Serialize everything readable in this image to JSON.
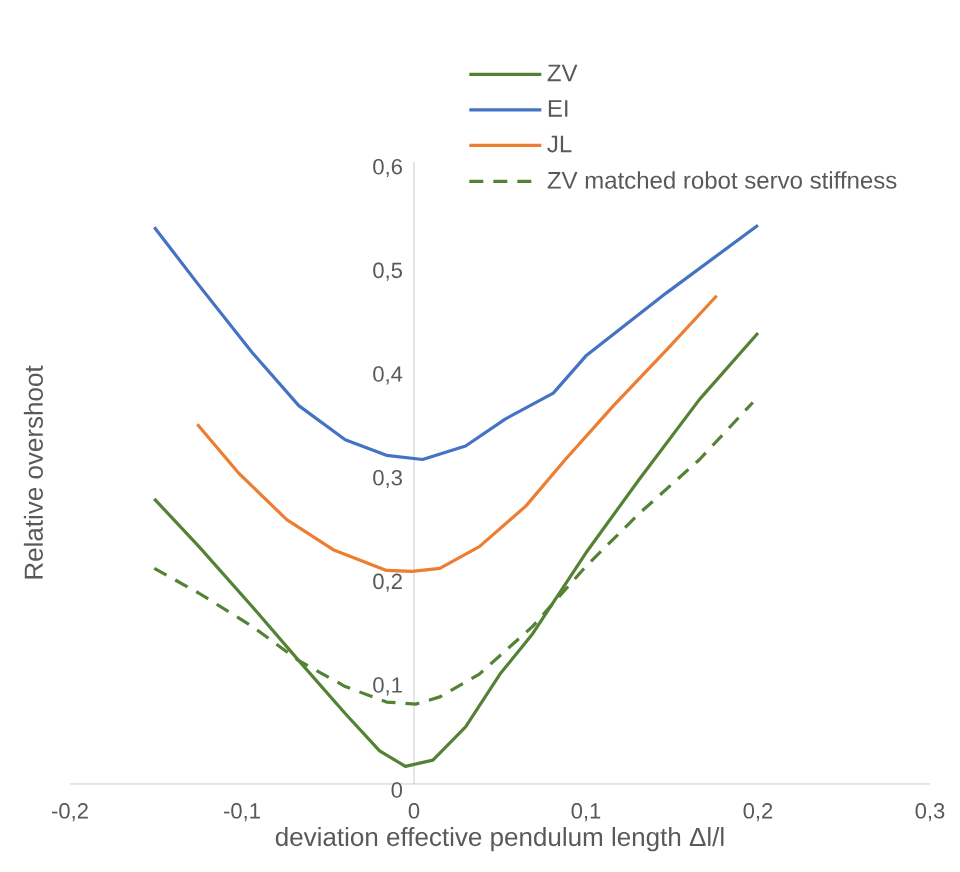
{
  "chart_data": {
    "type": "line",
    "xlabel": "deviation effective pendulum length Δl/l",
    "ylabel": "Relative overshoot",
    "xlim": [
      -0.2,
      0.3
    ],
    "ylim": [
      0,
      0.6
    ],
    "xticks": [
      {
        "value": -0.2,
        "label": "-0,2"
      },
      {
        "value": -0.1,
        "label": "-0,1"
      },
      0,
      {
        "value": 0.1,
        "label": "0,1"
      },
      {
        "value": 0.2,
        "label": "0,2"
      },
      {
        "value": 0.3,
        "label": "0,3"
      }
    ],
    "yticks": [
      0,
      {
        "value": 0.1,
        "label": "0,1"
      },
      {
        "value": 0.2,
        "label": "0,2"
      },
      {
        "value": 0.3,
        "label": "0,3"
      },
      {
        "value": 0.4,
        "label": "0,4"
      },
      {
        "value": 0.5,
        "label": "0,5"
      },
      {
        "value": 0.6,
        "label": "0,6"
      }
    ],
    "legend": "top",
    "grid": false,
    "series": [
      {
        "name": "ZV",
        "color": "#548235",
        "line_style": "solid",
        "x": [
          -0.151,
          -0.125,
          -0.094,
          -0.067,
          -0.04,
          -0.02,
          -0.005,
          0.011,
          0.03,
          0.05,
          0.069,
          0.1,
          0.131,
          0.166,
          0.2
        ],
        "values": [
          0.275,
          0.229,
          0.171,
          0.119,
          0.068,
          0.032,
          0.017,
          0.023,
          0.055,
          0.106,
          0.145,
          0.223,
          0.294,
          0.371,
          0.435
        ]
      },
      {
        "name": "EI",
        "color": "#4472c4",
        "line_style": "solid",
        "x": [
          -0.151,
          -0.125,
          -0.094,
          -0.067,
          -0.04,
          -0.016,
          0.005,
          0.03,
          0.053,
          0.081,
          0.1,
          0.147,
          0.2
        ],
        "values": [
          0.537,
          0.481,
          0.416,
          0.365,
          0.332,
          0.317,
          0.313,
          0.326,
          0.352,
          0.377,
          0.413,
          0.474,
          0.539
        ]
      },
      {
        "name": "JL",
        "color": "#ed7d31",
        "line_style": "solid",
        "x": [
          -0.126,
          -0.102,
          -0.074,
          -0.047,
          -0.016,
          -0.001,
          0.015,
          0.038,
          0.065,
          0.088,
          0.116,
          0.147,
          0.176
        ],
        "values": [
          0.347,
          0.3,
          0.255,
          0.226,
          0.206,
          0.205,
          0.208,
          0.229,
          0.268,
          0.313,
          0.365,
          0.419,
          0.471
        ]
      },
      {
        "name": "ZV matched robot servo stiffness",
        "color": "#548235",
        "line_style": "dashed",
        "x": [
          -0.151,
          -0.125,
          -0.094,
          -0.067,
          -0.04,
          -0.016,
          0.001,
          0.015,
          0.038,
          0.069,
          0.1,
          0.131,
          0.166,
          0.197
        ],
        "values": [
          0.208,
          0.184,
          0.152,
          0.119,
          0.094,
          0.079,
          0.077,
          0.084,
          0.106,
          0.152,
          0.21,
          0.261,
          0.313,
          0.368
        ]
      }
    ]
  }
}
